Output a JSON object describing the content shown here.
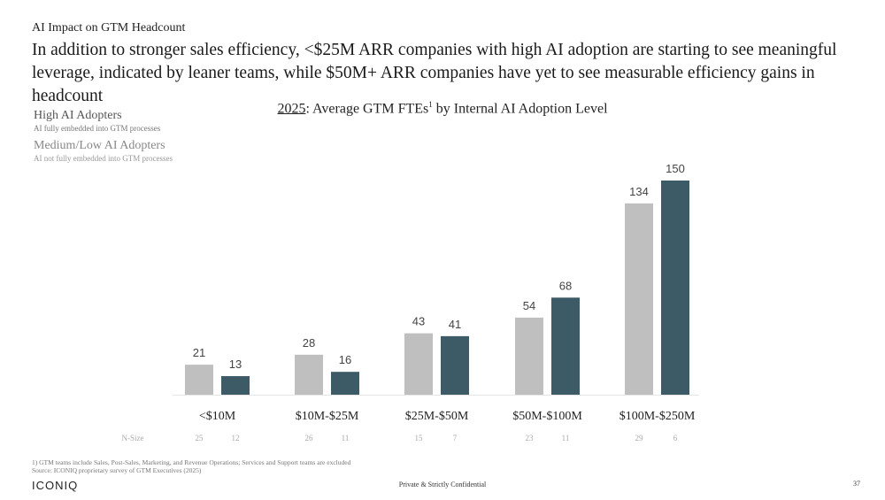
{
  "header": {
    "section_label": "AI Impact on GTM Headcount",
    "headline": "In addition to stronger sales efficiency, <$25M ARR companies with high AI adoption are starting to see meaningful leverage, indicated by leaner teams, while $50M+ ARR companies have yet to see measurable efficiency gains in headcount"
  },
  "legend": {
    "items": [
      {
        "name": "High AI Adopters",
        "description": "AI fully embedded into GTM processes"
      },
      {
        "name": "Medium/Low AI Adopters",
        "description": "AI not fully embedded into GTM processes"
      }
    ]
  },
  "chart_title": {
    "year": "2025",
    "rest_a": ": Average GTM FTEs",
    "footnote_ref": "1",
    "rest_b": " by Internal AI Adoption Level"
  },
  "chart_data": {
    "type": "bar",
    "title": "2025: Average GTM FTEs by Internal AI Adoption Level",
    "xlabel": "",
    "ylabel": "",
    "ylim": [
      0,
      160
    ],
    "grid": false,
    "categories": [
      "<$10M",
      "$10M-$25M",
      "$25M-$50M",
      "$50M-$100M",
      "$100M-$250M"
    ],
    "series": [
      {
        "name": "Medium/Low AI Adopters",
        "color": "#bfbfbf",
        "values": [
          21,
          28,
          43,
          54,
          134
        ],
        "n_size": [
          25,
          26,
          15,
          23,
          29
        ]
      },
      {
        "name": "High AI Adopters",
        "color": "#3d5b66",
        "values": [
          13,
          16,
          41,
          68,
          150
        ],
        "n_size": [
          12,
          11,
          7,
          11,
          6
        ]
      }
    ],
    "n_size_label": "N-Size"
  },
  "footer": {
    "footnote": "1) GTM teams include Sales, Post-Sales, Marketing, and Revenue Operations; Services and Support teams are excluded",
    "source": "Source: ICONIQ proprietary survey of GTM Executives (2025)",
    "logo": "ICONIQ",
    "confidential": "Private & Strictly Confidential",
    "page_number": "37"
  }
}
